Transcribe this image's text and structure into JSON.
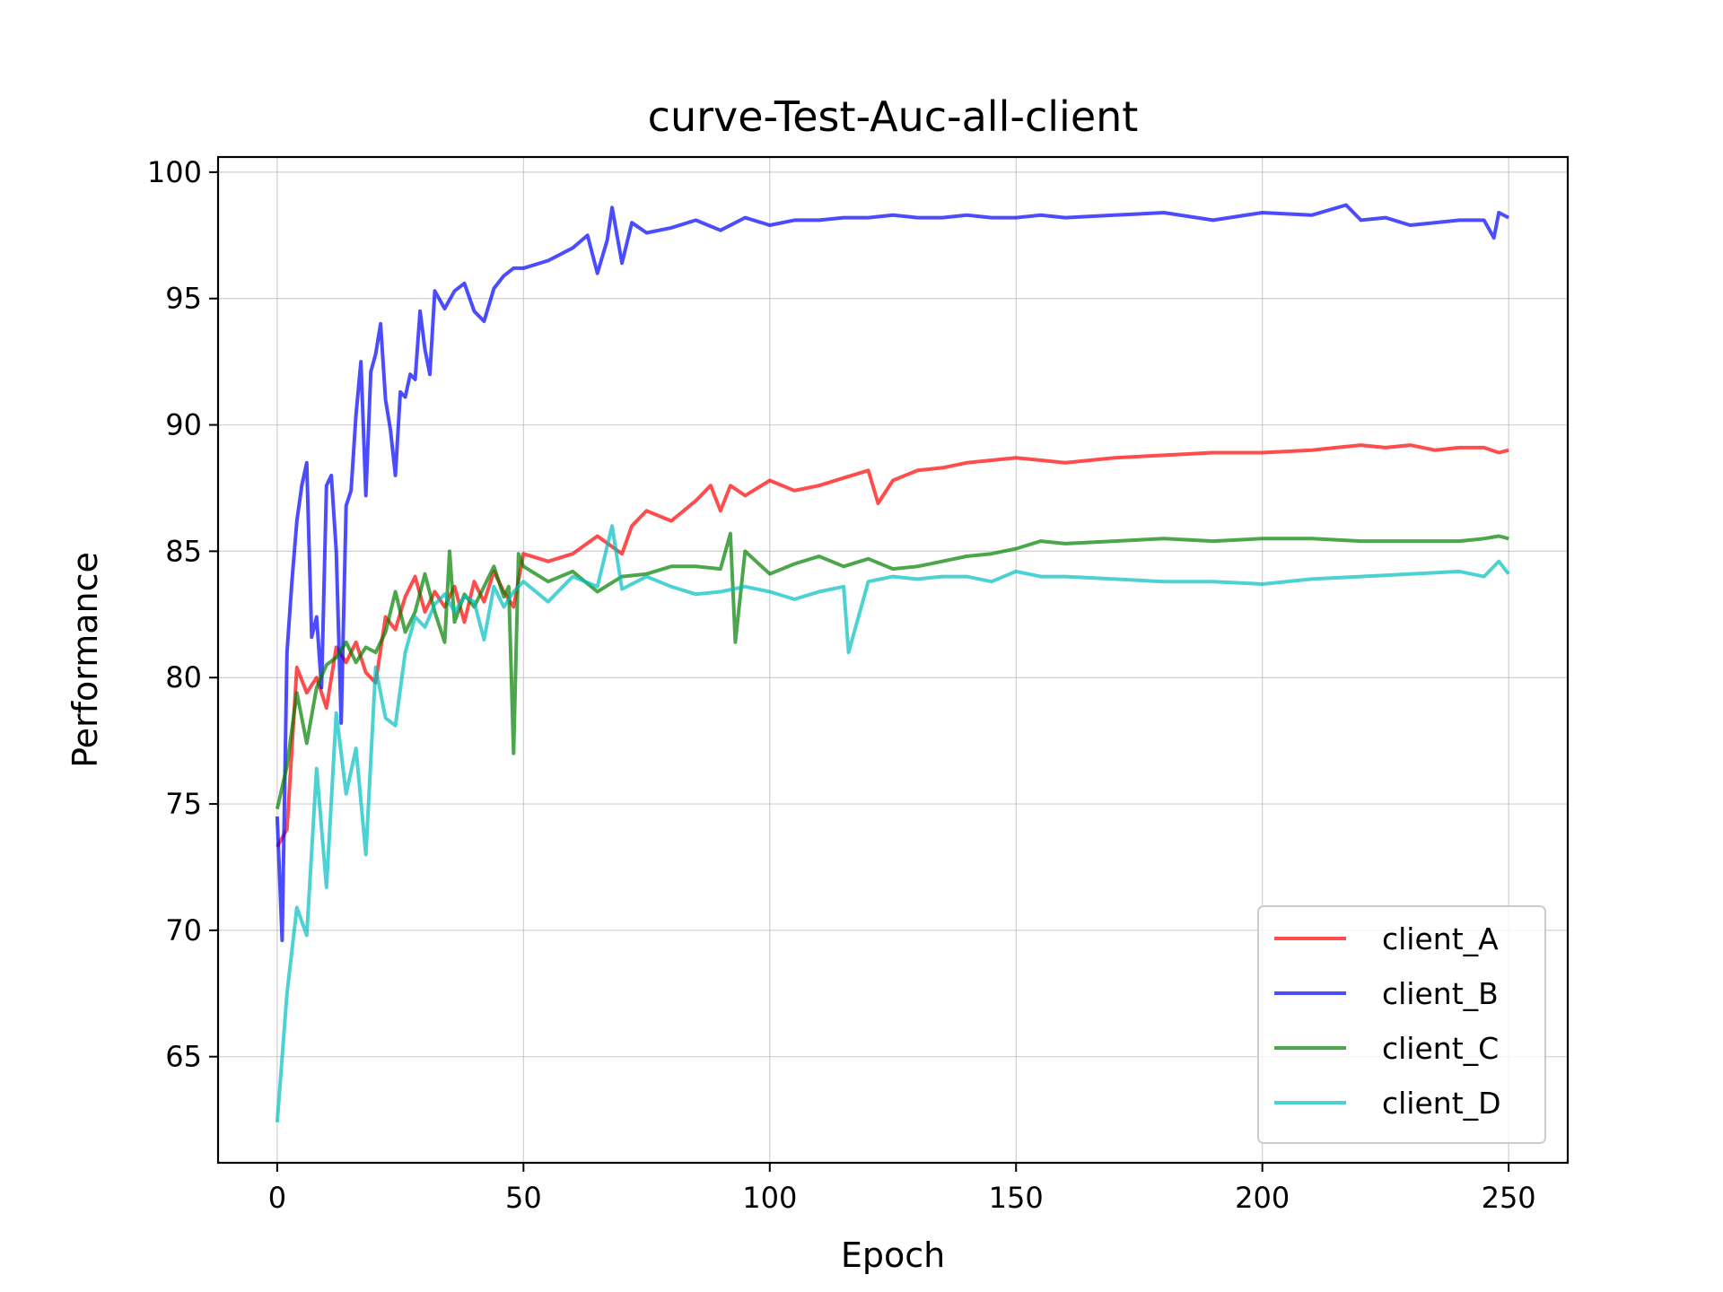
{
  "chart_data": {
    "type": "line",
    "title": "curve-Test-Auc-all-client",
    "xlabel": "Epoch",
    "ylabel": "Performance",
    "xlim": [
      -12,
      262
    ],
    "ylim": [
      60.8,
      100.6
    ],
    "xticks": [
      0,
      50,
      100,
      150,
      200,
      250
    ],
    "yticks": [
      65,
      70,
      75,
      80,
      85,
      90,
      95,
      100
    ],
    "grid": true,
    "legend_position": "lower right",
    "series": [
      {
        "name": "client_A",
        "color": "#ff0000",
        "x": [
          0,
          2,
          4,
          6,
          8,
          10,
          12,
          14,
          16,
          18,
          20,
          22,
          24,
          26,
          28,
          30,
          32,
          34,
          36,
          38,
          40,
          42,
          44,
          46,
          48,
          50,
          55,
          60,
          65,
          70,
          72,
          75,
          80,
          85,
          88,
          90,
          92,
          95,
          100,
          105,
          110,
          115,
          120,
          122,
          125,
          130,
          135,
          140,
          145,
          150,
          160,
          170,
          180,
          190,
          200,
          210,
          215,
          220,
          225,
          230,
          235,
          240,
          245,
          248,
          250
        ],
        "y": [
          73.3,
          74.0,
          80.4,
          79.4,
          80.0,
          78.8,
          81.2,
          80.6,
          81.4,
          80.2,
          79.8,
          82.4,
          81.9,
          83.2,
          84.0,
          82.6,
          83.4,
          82.8,
          83.6,
          82.2,
          83.8,
          83.0,
          84.2,
          83.4,
          82.8,
          84.9,
          84.6,
          84.9,
          85.6,
          84.9,
          86.0,
          86.6,
          86.2,
          87.0,
          87.6,
          86.6,
          87.6,
          87.2,
          87.8,
          87.4,
          87.6,
          87.9,
          88.2,
          86.9,
          87.8,
          88.2,
          88.3,
          88.5,
          88.6,
          88.7,
          88.5,
          88.7,
          88.8,
          88.9,
          88.9,
          89.0,
          89.1,
          89.2,
          89.1,
          89.2,
          89.0,
          89.1,
          89.1,
          88.9,
          89.0
        ]
      },
      {
        "name": "client_B",
        "color": "#0000ff",
        "x": [
          0,
          1,
          2,
          3,
          4,
          5,
          6,
          7,
          8,
          9,
          10,
          11,
          12,
          13,
          14,
          15,
          16,
          17,
          18,
          19,
          20,
          21,
          22,
          23,
          24,
          25,
          26,
          27,
          28,
          29,
          30,
          31,
          32,
          34,
          36,
          38,
          40,
          42,
          44,
          46,
          48,
          50,
          55,
          60,
          63,
          65,
          67,
          68,
          70,
          72,
          75,
          80,
          85,
          90,
          95,
          100,
          105,
          110,
          115,
          120,
          125,
          130,
          135,
          140,
          145,
          150,
          155,
          160,
          170,
          180,
          190,
          200,
          210,
          217,
          220,
          225,
          230,
          235,
          240,
          245,
          247,
          248,
          250
        ],
        "y": [
          74.5,
          69.6,
          81.0,
          83.8,
          86.2,
          87.6,
          88.5,
          81.6,
          82.4,
          79.6,
          87.6,
          88.0,
          85.0,
          78.2,
          86.8,
          87.4,
          90.4,
          92.5,
          87.2,
          92.1,
          92.8,
          94.0,
          91.0,
          89.8,
          88.0,
          91.3,
          91.1,
          92.0,
          91.8,
          94.5,
          93.0,
          92.0,
          95.3,
          94.6,
          95.3,
          95.6,
          94.5,
          94.1,
          95.4,
          95.9,
          96.2,
          96.2,
          96.5,
          97.0,
          97.5,
          96.0,
          97.3,
          98.6,
          96.4,
          98.0,
          97.6,
          97.8,
          98.1,
          97.7,
          98.2,
          97.9,
          98.1,
          98.1,
          98.2,
          98.2,
          98.3,
          98.2,
          98.2,
          98.3,
          98.2,
          98.2,
          98.3,
          98.2,
          98.3,
          98.4,
          98.1,
          98.4,
          98.3,
          98.7,
          98.1,
          98.2,
          97.9,
          98.0,
          98.1,
          98.1,
          97.4,
          98.4,
          98.2
        ]
      },
      {
        "name": "client_C",
        "color": "#008000",
        "x": [
          0,
          2,
          4,
          6,
          8,
          10,
          12,
          14,
          16,
          18,
          20,
          22,
          24,
          26,
          28,
          30,
          32,
          34,
          35,
          36,
          38,
          40,
          42,
          44,
          46,
          47,
          48,
          49,
          50,
          55,
          60,
          65,
          70,
          75,
          80,
          85,
          90,
          92,
          93,
          95,
          100,
          105,
          110,
          115,
          120,
          125,
          130,
          135,
          140,
          145,
          150,
          155,
          160,
          170,
          180,
          190,
          200,
          210,
          220,
          230,
          240,
          245,
          248,
          250
        ],
        "y": [
          74.8,
          76.5,
          79.4,
          77.4,
          79.6,
          80.5,
          80.8,
          81.4,
          80.6,
          81.2,
          81.0,
          81.8,
          83.4,
          81.8,
          82.6,
          84.1,
          82.6,
          81.4,
          85.0,
          82.2,
          83.3,
          82.8,
          83.6,
          84.4,
          83.2,
          83.6,
          77.0,
          84.9,
          84.4,
          83.8,
          84.2,
          83.4,
          84.0,
          84.1,
          84.4,
          84.4,
          84.3,
          85.7,
          81.4,
          85.0,
          84.1,
          84.5,
          84.8,
          84.4,
          84.7,
          84.3,
          84.4,
          84.6,
          84.8,
          84.9,
          85.1,
          85.4,
          85.3,
          85.4,
          85.5,
          85.4,
          85.5,
          85.5,
          85.4,
          85.4,
          85.4,
          85.5,
          85.6,
          85.5
        ]
      },
      {
        "name": "client_D",
        "color": "#00bfbf",
        "x": [
          0,
          2,
          4,
          6,
          8,
          10,
          12,
          14,
          16,
          18,
          20,
          22,
          24,
          26,
          28,
          30,
          32,
          34,
          36,
          38,
          40,
          42,
          44,
          46,
          48,
          50,
          55,
          60,
          65,
          68,
          70,
          75,
          80,
          85,
          90,
          95,
          100,
          105,
          110,
          115,
          116,
          120,
          125,
          130,
          135,
          140,
          145,
          150,
          155,
          160,
          170,
          180,
          190,
          200,
          210,
          220,
          230,
          240,
          245,
          248,
          250
        ],
        "y": [
          62.4,
          67.5,
          70.9,
          69.8,
          76.4,
          71.7,
          78.6,
          75.4,
          77.2,
          73.0,
          80.4,
          78.4,
          78.1,
          81.0,
          82.4,
          82.0,
          82.9,
          83.3,
          82.6,
          83.2,
          83.0,
          81.5,
          83.6,
          82.8,
          83.4,
          83.8,
          83.0,
          84.0,
          83.6,
          86.0,
          83.5,
          84.0,
          83.6,
          83.3,
          83.4,
          83.6,
          83.4,
          83.1,
          83.4,
          83.6,
          81.0,
          83.8,
          84.0,
          83.9,
          84.0,
          84.0,
          83.8,
          84.2,
          84.0,
          84.0,
          83.9,
          83.8,
          83.8,
          83.7,
          83.9,
          84.0,
          84.1,
          84.2,
          84.0,
          84.6,
          84.1
        ]
      }
    ]
  }
}
